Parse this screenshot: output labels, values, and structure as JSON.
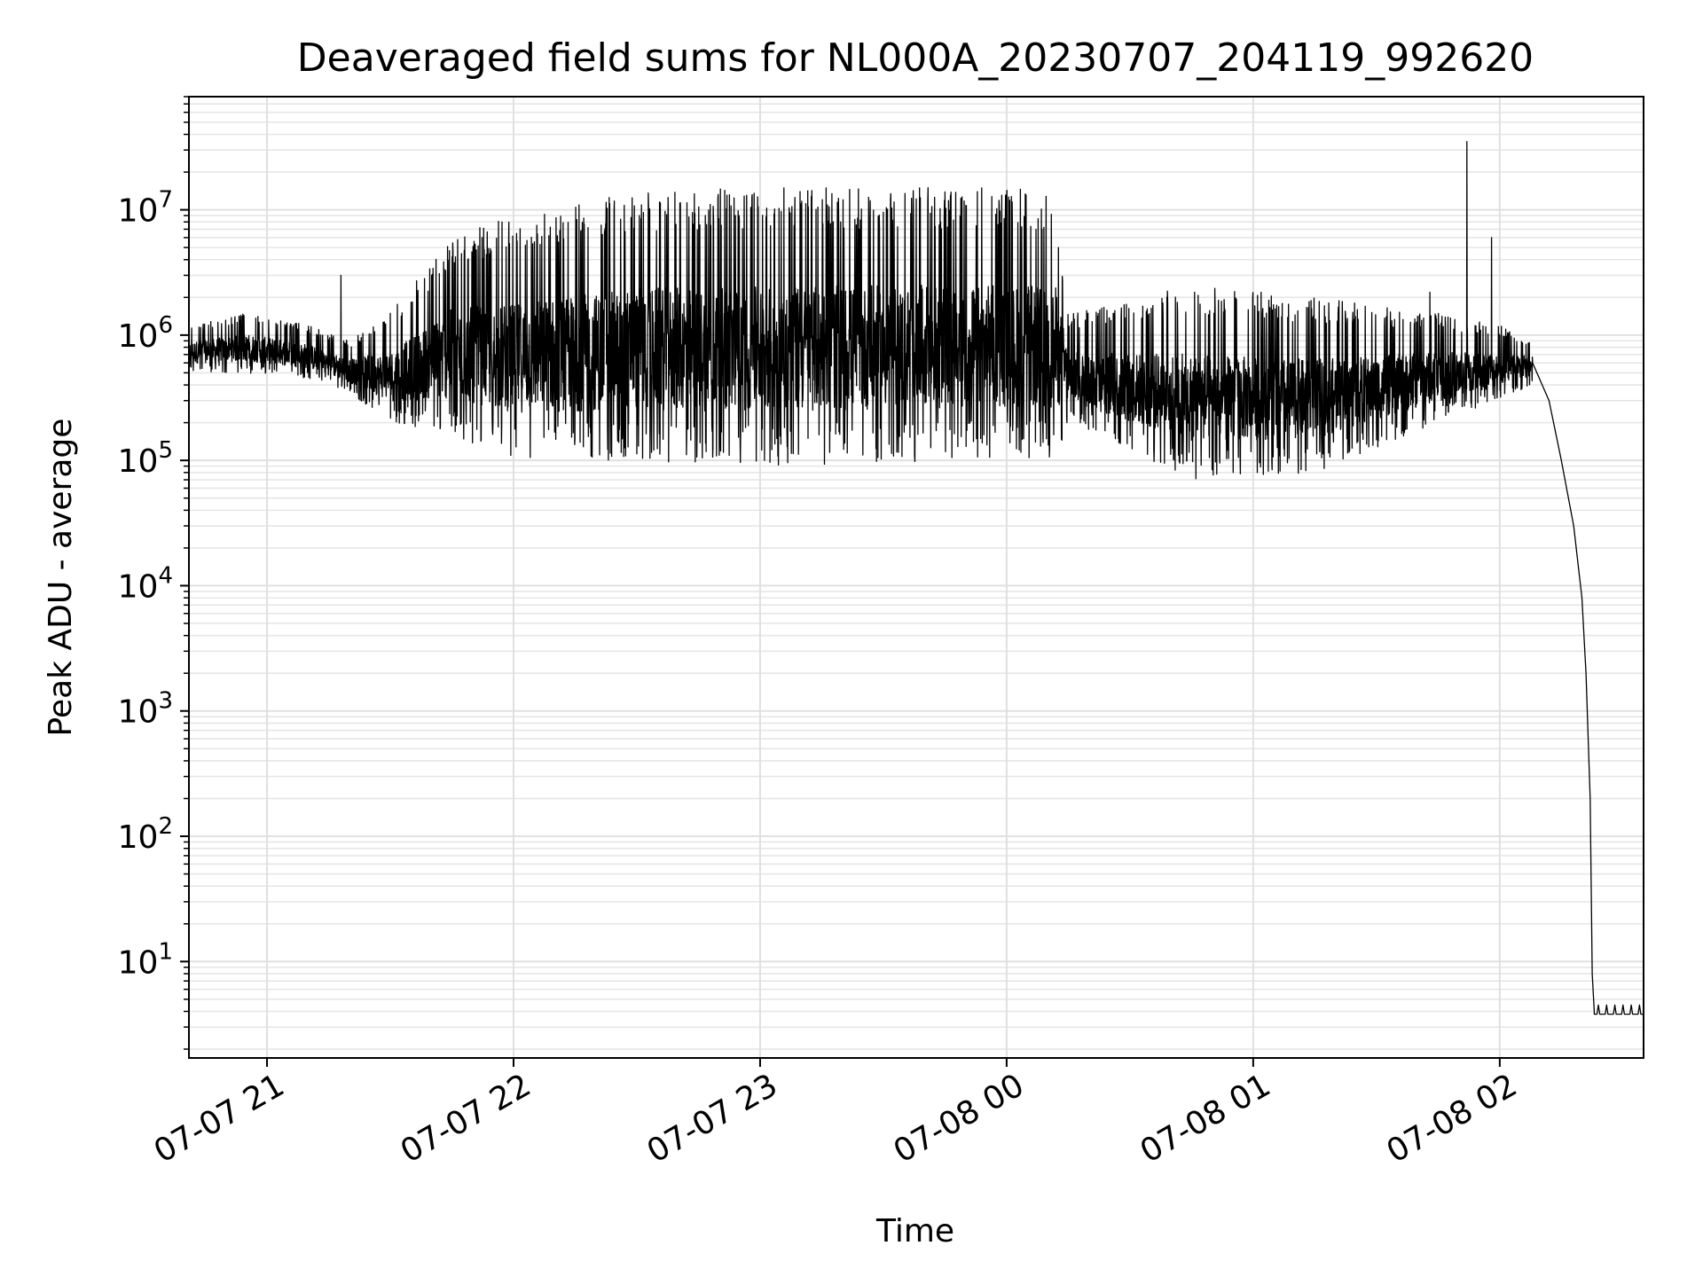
{
  "chart_data": {
    "type": "line",
    "title": "Deaveraged field sums for NL000A_20230707_204119_992620",
    "xlabel": "Time",
    "ylabel": "Peak ADU - average",
    "yscale": "log",
    "grid": true,
    "xlim": [
      "2023-07-07 20:41",
      "2023-07-08 02:35"
    ],
    "ylim": [
      1.7,
      80000000
    ],
    "x_ticks": [
      {
        "value": "2023-07-07 21:00",
        "label": "07-07 21"
      },
      {
        "value": "2023-07-07 22:00",
        "label": "07-07 22"
      },
      {
        "value": "2023-07-07 23:00",
        "label": "07-07 23"
      },
      {
        "value": "2023-07-08 00:00",
        "label": "07-08 00"
      },
      {
        "value": "2023-07-08 01:00",
        "label": "07-08 01"
      },
      {
        "value": "2023-07-08 02:00",
        "label": "07-08 02"
      }
    ],
    "y_ticks": [
      {
        "value": 10,
        "base": "10",
        "exp": "1"
      },
      {
        "value": 100,
        "base": "10",
        "exp": "2"
      },
      {
        "value": 1000,
        "base": "10",
        "exp": "3"
      },
      {
        "value": 10000,
        "base": "10",
        "exp": "4"
      },
      {
        "value": 100000,
        "base": "10",
        "exp": "5"
      },
      {
        "value": 1000000,
        "base": "10",
        "exp": "6"
      },
      {
        "value": 10000000,
        "base": "10",
        "exp": "7"
      }
    ],
    "series": [
      {
        "color": "#000000",
        "envelope": [
          {
            "t": "2023-07-07 20:41",
            "lo": 500000,
            "hi": 1200000
          },
          {
            "t": "2023-07-07 20:55",
            "lo": 500000,
            "hi": 1500000
          },
          {
            "t": "2023-07-07 21:10",
            "lo": 450000,
            "hi": 1200000
          },
          {
            "t": "2023-07-07 21:20",
            "lo": 350000,
            "hi": 900000
          },
          {
            "t": "2023-07-07 21:30",
            "lo": 200000,
            "hi": 1500000
          },
          {
            "t": "2023-07-07 21:45",
            "lo": 150000,
            "hi": 6000000
          },
          {
            "t": "2023-07-07 22:00",
            "lo": 100000,
            "hi": 9000000
          },
          {
            "t": "2023-07-07 22:30",
            "lo": 95000,
            "hi": 14000000
          },
          {
            "t": "2023-07-07 23:00",
            "lo": 90000,
            "hi": 15000000
          },
          {
            "t": "2023-07-07 23:30",
            "lo": 95000,
            "hi": 15000000
          },
          {
            "t": "2023-07-08 00:00",
            "lo": 100000,
            "hi": 15000000
          },
          {
            "t": "2023-07-08 00:12",
            "lo": 100000,
            "hi": 14000000
          },
          {
            "t": "2023-07-08 00:15",
            "lo": 200000,
            "hi": 1500000
          },
          {
            "t": "2023-07-08 00:45",
            "lo": 70000,
            "hi": 2500000
          },
          {
            "t": "2023-07-08 01:15",
            "lo": 80000,
            "hi": 2000000
          },
          {
            "t": "2023-07-08 01:45",
            "lo": 200000,
            "hi": 1500000
          },
          {
            "t": "2023-07-08 02:00",
            "lo": 300000,
            "hi": 1200000
          },
          {
            "t": "2023-07-08 02:08",
            "lo": 400000,
            "hi": 900000
          }
        ],
        "spikes": [
          {
            "t": "2023-07-07 21:18",
            "value": 3000000
          },
          {
            "t": "2023-07-08 01:43",
            "value": 2200000
          },
          {
            "t": "2023-07-08 01:52",
            "value": 35000000
          },
          {
            "t": "2023-07-08 01:58",
            "value": 6000000
          }
        ],
        "decay": [
          {
            "t": "2023-07-08 02:08",
            "value": 600000
          },
          {
            "t": "2023-07-08 02:12",
            "value": 300000
          },
          {
            "t": "2023-07-08 02:15",
            "value": 100000
          },
          {
            "t": "2023-07-08 02:18",
            "value": 30000
          },
          {
            "t": "2023-07-08 02:20",
            "value": 8000
          },
          {
            "t": "2023-07-08 02:21",
            "value": 2000
          },
          {
            "t": "2023-07-08 02:22",
            "value": 200
          },
          {
            "t": "2023-07-08 02:22:30",
            "value": 8
          },
          {
            "t": "2023-07-08 02:23",
            "value": 4
          }
        ],
        "floor": {
          "from": "2023-07-08 02:23",
          "to": "2023-07-08 02:35",
          "lo": 3.8,
          "hi": 4.5
        }
      }
    ]
  }
}
